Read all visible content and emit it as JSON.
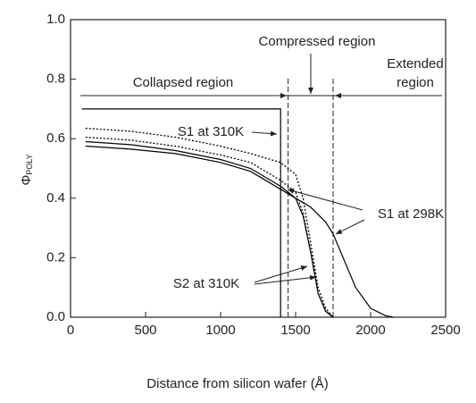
{
  "chart_data": {
    "type": "line",
    "x_label": "Distance from silicon wafer (Å)",
    "y_label": "Φ",
    "y_label_sub": "POLY",
    "xlim": [
      0,
      2500
    ],
    "xticks": [
      0,
      500,
      1000,
      1500,
      2000,
      2500
    ],
    "ylim": [
      0,
      1
    ],
    "yticks": [
      {
        "value": 0,
        "label": "0.0"
      },
      0.2,
      0.4,
      0.6,
      0.8,
      {
        "value": 1,
        "label": "1.0"
      }
    ],
    "series": [
      {
        "color": "#000000",
        "style": "solid",
        "x": [
          75,
          1400,
          1400
        ],
        "values": [
          0.7,
          0.7,
          0
        ]
      },
      {
        "color": "#000000",
        "style": "dotted",
        "x": [
          100,
          400,
          700,
          1000,
          1200,
          1400,
          1500,
          1550,
          1600,
          1650,
          1700,
          1750
        ],
        "values": [
          0.635,
          0.625,
          0.605,
          0.575,
          0.55,
          0.52,
          0.48,
          0.4,
          0.25,
          0.1,
          0.03,
          0
        ]
      },
      {
        "color": "#000000",
        "style": "dotted",
        "x": [
          100,
          400,
          700,
          1000,
          1200,
          1400,
          1500,
          1550,
          1600,
          1650,
          1700,
          1750
        ],
        "values": [
          0.605,
          0.595,
          0.575,
          0.545,
          0.52,
          0.46,
          0.42,
          0.35,
          0.22,
          0.08,
          0.02,
          0
        ]
      },
      {
        "color": "#000000",
        "style": "solid",
        "x": [
          100,
          400,
          700,
          1000,
          1200,
          1400,
          1500,
          1550,
          1600,
          1650,
          1700,
          1750
        ],
        "values": [
          0.59,
          0.58,
          0.56,
          0.53,
          0.5,
          0.44,
          0.4,
          0.34,
          0.22,
          0.08,
          0.02,
          0
        ]
      },
      {
        "color": "#000000",
        "style": "solid",
        "x": [
          100,
          400,
          700,
          1000,
          1200,
          1400,
          1500,
          1600,
          1700,
          1750,
          1800,
          1900,
          2000,
          2100,
          2150
        ],
        "values": [
          0.575,
          0.565,
          0.55,
          0.52,
          0.49,
          0.43,
          0.4,
          0.37,
          0.32,
          0.28,
          0.22,
          0.1,
          0.03,
          0.005,
          0
        ]
      }
    ],
    "region_bounds": [
      1450,
      1750
    ],
    "regions": [
      "Collapsed region",
      "Compressed region",
      "Extended",
      "region"
    ],
    "annotations": [
      "S1 at 310K",
      "S1 at 298K",
      "S2 at 310K"
    ]
  }
}
